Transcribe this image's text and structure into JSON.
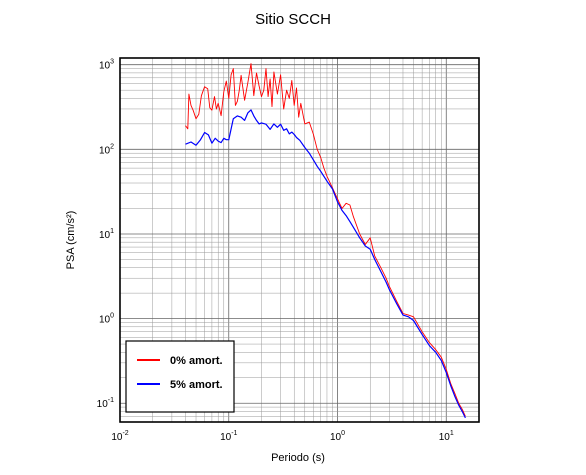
{
  "chart_data": {
    "type": "line",
    "title": "Sitio SCCH",
    "xlabel": "Periodo (s)",
    "ylabel": "PSA (cm/s²)",
    "xscale": "log",
    "yscale": "log",
    "xlim": [
      0.01,
      20
    ],
    "ylim": [
      0.06,
      1200
    ],
    "grid": true,
    "legend_position": "bottom-left",
    "x_ticks": [
      {
        "base": "10",
        "exp": "-2"
      },
      {
        "base": "10",
        "exp": "-1"
      },
      {
        "base": "10",
        "exp": "0"
      },
      {
        "base": "10",
        "exp": "1"
      }
    ],
    "y_ticks": [
      {
        "base": "10",
        "exp": "-1"
      },
      {
        "base": "10",
        "exp": "0"
      },
      {
        "base": "10",
        "exp": "1"
      },
      {
        "base": "10",
        "exp": "2"
      },
      {
        "base": "10",
        "exp": "3"
      }
    ],
    "series": [
      {
        "name": "0% amort.",
        "color": "#ff0000",
        "points": [
          [
            0.04,
            190
          ],
          [
            0.042,
            175
          ],
          [
            0.043,
            450
          ],
          [
            0.045,
            330
          ],
          [
            0.047,
            290
          ],
          [
            0.05,
            230
          ],
          [
            0.053,
            260
          ],
          [
            0.056,
            430
          ],
          [
            0.06,
            550
          ],
          [
            0.064,
            520
          ],
          [
            0.067,
            310
          ],
          [
            0.07,
            290
          ],
          [
            0.074,
            420
          ],
          [
            0.077,
            300
          ],
          [
            0.08,
            350
          ],
          [
            0.085,
            250
          ],
          [
            0.09,
            480
          ],
          [
            0.095,
            640
          ],
          [
            0.1,
            400
          ],
          [
            0.105,
            760
          ],
          [
            0.11,
            900
          ],
          [
            0.115,
            330
          ],
          [
            0.12,
            370
          ],
          [
            0.125,
            500
          ],
          [
            0.13,
            750
          ],
          [
            0.14,
            380
          ],
          [
            0.15,
            620
          ],
          [
            0.16,
            1030
          ],
          [
            0.17,
            430
          ],
          [
            0.18,
            800
          ],
          [
            0.19,
            560
          ],
          [
            0.2,
            420
          ],
          [
            0.21,
            500
          ],
          [
            0.22,
            900
          ],
          [
            0.23,
            420
          ],
          [
            0.24,
            680
          ],
          [
            0.25,
            320
          ],
          [
            0.26,
            820
          ],
          [
            0.28,
            450
          ],
          [
            0.3,
            760
          ],
          [
            0.32,
            300
          ],
          [
            0.34,
            500
          ],
          [
            0.36,
            400
          ],
          [
            0.38,
            650
          ],
          [
            0.4,
            330
          ],
          [
            0.42,
            530
          ],
          [
            0.44,
            240
          ],
          [
            0.46,
            350
          ],
          [
            0.5,
            200
          ],
          [
            0.55,
            210
          ],
          [
            0.6,
            150
          ],
          [
            0.65,
            100
          ],
          [
            0.7,
            80
          ],
          [
            0.75,
            60
          ],
          [
            0.8,
            48
          ],
          [
            0.9,
            35
          ],
          [
            1.0,
            26
          ],
          [
            1.1,
            20
          ],
          [
            1.2,
            23
          ],
          [
            1.3,
            22
          ],
          [
            1.4,
            16
          ],
          [
            1.6,
            10
          ],
          [
            1.8,
            7.5
          ],
          [
            2.0,
            9.0
          ],
          [
            2.2,
            5.5
          ],
          [
            2.5,
            4.0
          ],
          [
            2.8,
            3.0
          ],
          [
            3.0,
            2.4
          ],
          [
            3.5,
            1.6
          ],
          [
            4.0,
            1.15
          ],
          [
            4.5,
            1.1
          ],
          [
            5.0,
            1.05
          ],
          [
            6.0,
            0.7
          ],
          [
            7.0,
            0.52
          ],
          [
            8.0,
            0.43
          ],
          [
            9.0,
            0.35
          ],
          [
            10.0,
            0.25
          ],
          [
            11.0,
            0.17
          ],
          [
            12.0,
            0.13
          ],
          [
            13.0,
            0.1
          ],
          [
            14.0,
            0.085
          ],
          [
            15.0,
            0.07
          ]
        ]
      },
      {
        "name": "5% amort.",
        "color": "#0000ff",
        "points": [
          [
            0.04,
            115
          ],
          [
            0.045,
            122
          ],
          [
            0.05,
            112
          ],
          [
            0.055,
            130
          ],
          [
            0.06,
            158
          ],
          [
            0.065,
            148
          ],
          [
            0.07,
            118
          ],
          [
            0.075,
            135
          ],
          [
            0.08,
            125
          ],
          [
            0.085,
            120
          ],
          [
            0.09,
            135
          ],
          [
            0.095,
            130
          ],
          [
            0.1,
            130
          ],
          [
            0.11,
            230
          ],
          [
            0.12,
            248
          ],
          [
            0.13,
            240
          ],
          [
            0.14,
            220
          ],
          [
            0.15,
            270
          ],
          [
            0.16,
            292
          ],
          [
            0.17,
            248
          ],
          [
            0.18,
            220
          ],
          [
            0.19,
            200
          ],
          [
            0.2,
            205
          ],
          [
            0.22,
            198
          ],
          [
            0.24,
            172
          ],
          [
            0.26,
            200
          ],
          [
            0.28,
            182
          ],
          [
            0.3,
            198
          ],
          [
            0.32,
            168
          ],
          [
            0.34,
            175
          ],
          [
            0.36,
            152
          ],
          [
            0.38,
            160
          ],
          [
            0.4,
            150
          ],
          [
            0.42,
            138
          ],
          [
            0.45,
            128
          ],
          [
            0.5,
            105
          ],
          [
            0.55,
            90
          ],
          [
            0.6,
            75
          ],
          [
            0.65,
            63
          ],
          [
            0.7,
            55
          ],
          [
            0.75,
            48
          ],
          [
            0.8,
            42
          ],
          [
            0.9,
            34
          ],
          [
            1.0,
            24
          ],
          [
            1.1,
            19
          ],
          [
            1.2,
            16.5
          ],
          [
            1.3,
            14
          ],
          [
            1.4,
            12
          ],
          [
            1.6,
            9
          ],
          [
            1.8,
            7.2
          ],
          [
            2.0,
            6.6
          ],
          [
            2.2,
            5.0
          ],
          [
            2.5,
            3.6
          ],
          [
            2.8,
            2.7
          ],
          [
            3.0,
            2.2
          ],
          [
            3.5,
            1.5
          ],
          [
            4.0,
            1.1
          ],
          [
            4.5,
            1.05
          ],
          [
            5.0,
            0.95
          ],
          [
            6.0,
            0.65
          ],
          [
            7.0,
            0.48
          ],
          [
            8.0,
            0.4
          ],
          [
            9.0,
            0.32
          ],
          [
            10.0,
            0.23
          ],
          [
            11.0,
            0.16
          ],
          [
            12.0,
            0.12
          ],
          [
            13.0,
            0.095
          ],
          [
            14.0,
            0.08
          ],
          [
            15.0,
            0.067
          ]
        ]
      }
    ]
  }
}
